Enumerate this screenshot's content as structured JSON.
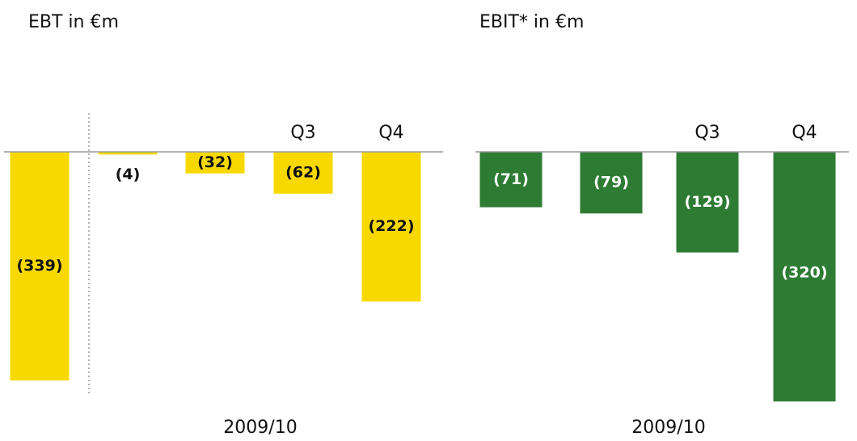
{
  "chart_data": [
    {
      "type": "bar",
      "title": "EBT in €m",
      "x_label": "2009/10",
      "categories": [
        null,
        null,
        null,
        "Q3",
        "Q4"
      ],
      "values": [
        -339,
        -4,
        -32,
        -62,
        -222
      ],
      "value_labels": [
        "(339)",
        "(4)",
        "(32)",
        "(62)",
        "(222)"
      ],
      "color": "#f7d900",
      "label_color": "#111111",
      "ylim": [
        -400,
        0
      ]
    },
    {
      "type": "bar",
      "title": "EBIT* in €m",
      "x_label": "2009/10",
      "categories": [
        null,
        null,
        "Q3",
        "Q4"
      ],
      "values": [
        -71,
        -79,
        -129,
        -320
      ],
      "value_labels": [
        "(71)",
        "(79)",
        "(129)",
        "(320)"
      ],
      "color": "#2e7b34",
      "label_color": "#ffffff",
      "ylim": [
        -350,
        0
      ]
    }
  ]
}
